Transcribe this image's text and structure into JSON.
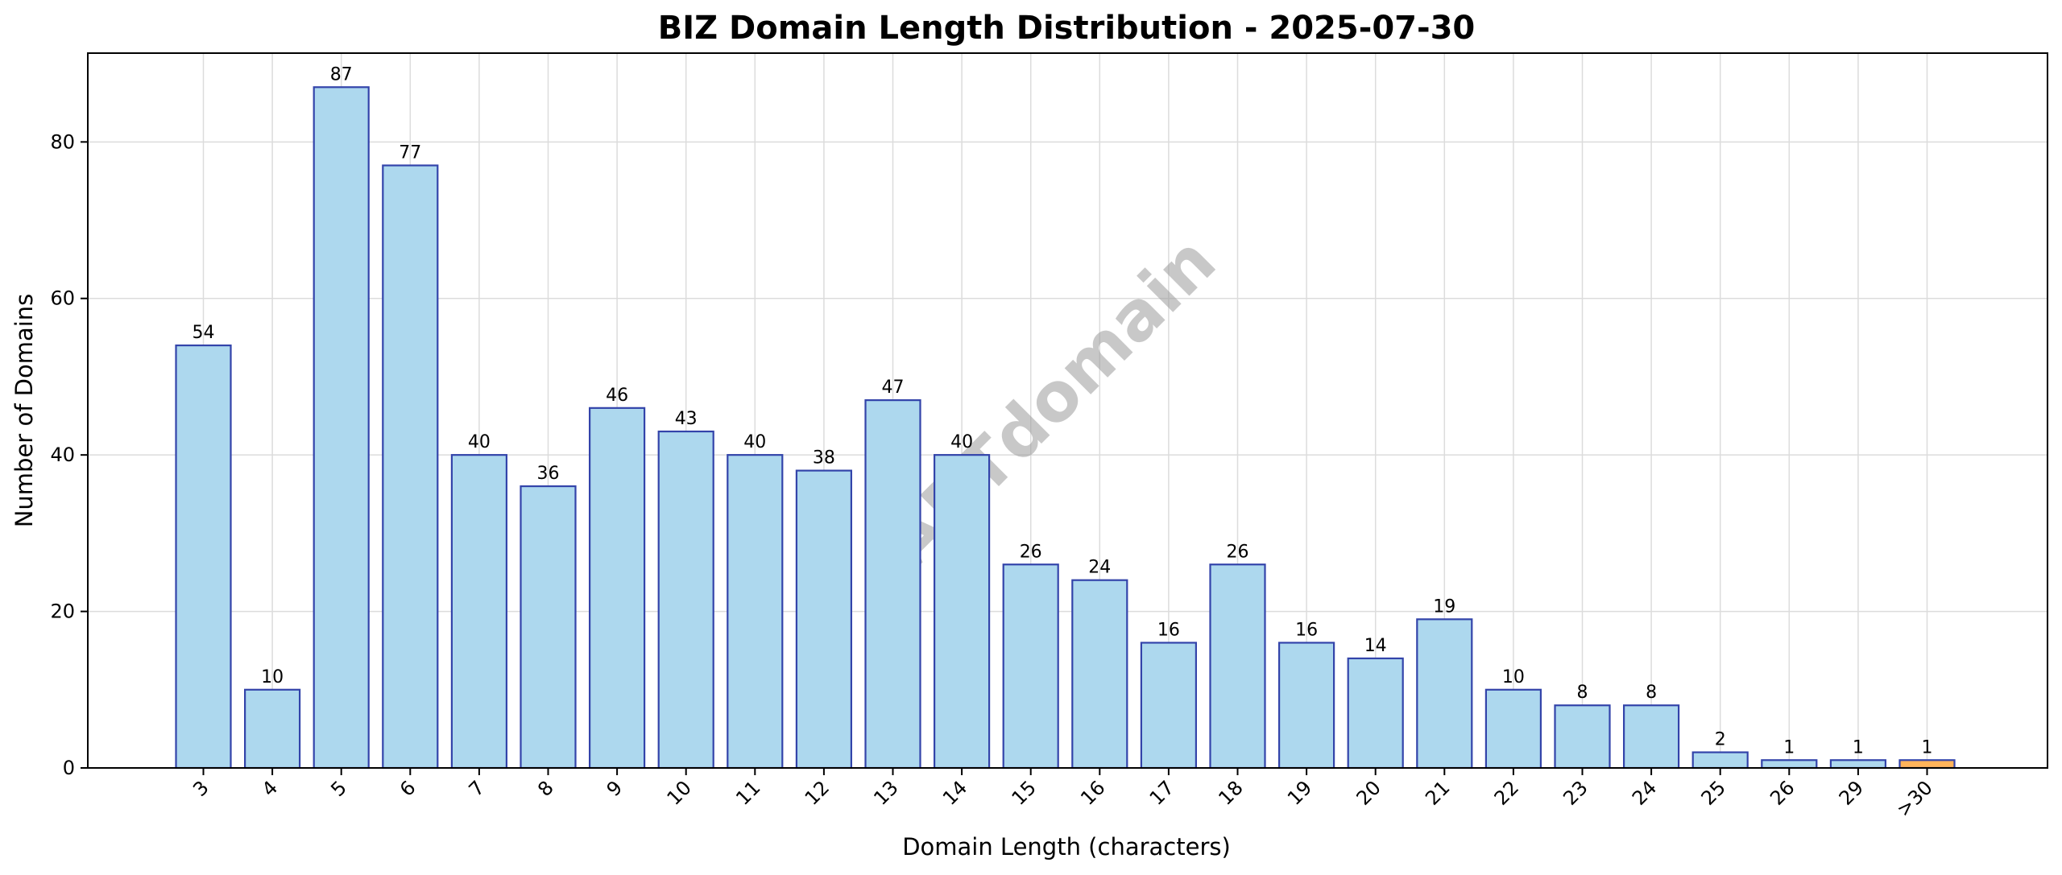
{
  "chart_data": {
    "type": "bar",
    "title": "BIZ Domain Length Distribution - 2025-07-30",
    "xlabel": "Domain Length (characters)",
    "ylabel": "Number of Domains",
    "categories": [
      "3",
      "4",
      "5",
      "6",
      "7",
      "8",
      "9",
      "10",
      "11",
      "12",
      "13",
      "14",
      "15",
      "16",
      "17",
      "18",
      "19",
      "20",
      "21",
      "22",
      "23",
      "24",
      "25",
      "26",
      "29",
      ">30"
    ],
    "values": [
      54,
      10,
      87,
      77,
      40,
      36,
      46,
      43,
      40,
      38,
      47,
      40,
      26,
      24,
      16,
      26,
      16,
      14,
      19,
      10,
      8,
      8,
      2,
      1,
      1,
      1
    ],
    "ylim": [
      0,
      91.35
    ],
    "yticks": [
      0,
      20,
      40,
      60,
      80
    ],
    "grid": true,
    "bar_color": "#ADD8EE",
    "bar_edge_color": "#3344AA",
    "highlight_category": ">30",
    "highlight_color": "#FFB45A",
    "watermark": "ABTdomain"
  }
}
